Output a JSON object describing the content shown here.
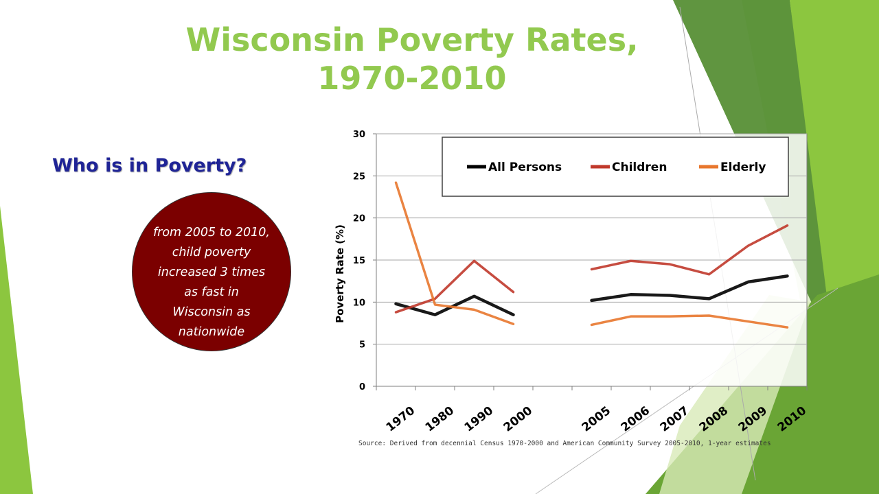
{
  "slide": {
    "title_line1": "Wisconsin Poverty Rates,",
    "title_line2": "1970-2010",
    "subtitle": "Who is in Poverty?",
    "callout_lines": [
      "from 2005 to 2010,",
      "child poverty",
      "increased 3 times",
      "as fast in",
      "Wisconsin as",
      "nationwide"
    ],
    "source": "Source: Derived from decennial Census 1970-2000 and American Community Survey 2005-2010, 1-year estimates",
    "colors": {
      "title": "#92c94f",
      "subtitle": "#1f2496",
      "callout_bg": "#7b0000",
      "accent_green": "#76b82a"
    }
  },
  "chart_data": {
    "type": "line",
    "title": "",
    "xlabel": "",
    "ylabel": "Poverty Rate (%)",
    "ylim": [
      0,
      30
    ],
    "yticks": [
      0,
      5,
      10,
      15,
      20,
      25,
      30
    ],
    "categories": [
      "1970",
      "1980",
      "1990",
      "2000",
      "",
      "2005",
      "2006",
      "2007",
      "2008",
      "2009",
      "2010"
    ],
    "legend_position": "top",
    "grid": true,
    "series": [
      {
        "name": "All Persons",
        "color": "#000000",
        "values": [
          9.8,
          8.5,
          10.7,
          8.5,
          null,
          10.2,
          10.9,
          10.8,
          10.4,
          12.4,
          13.1
        ]
      },
      {
        "name": "Children",
        "color": "#c0392b",
        "values": [
          8.8,
          10.4,
          14.9,
          11.2,
          null,
          13.9,
          14.9,
          14.5,
          13.3,
          16.7,
          19.1
        ]
      },
      {
        "name": "Elderly",
        "color": "#e8772e",
        "values": [
          24.2,
          9.7,
          9.1,
          7.4,
          null,
          7.3,
          8.3,
          8.3,
          8.4,
          7.7,
          7.0
        ]
      }
    ]
  }
}
